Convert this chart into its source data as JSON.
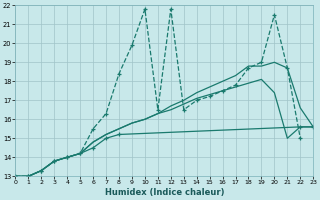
{
  "xlabel": "Humidex (Indice chaleur)",
  "bg_color": "#c8e8ea",
  "grid_color": "#a0c4c8",
  "line_color": "#1a7a6e",
  "xlim": [
    0,
    23
  ],
  "ylim": [
    13,
    22
  ],
  "figsize": [
    3.2,
    2.0
  ],
  "dpi": 100,
  "series": [
    {
      "x": [
        0,
        1,
        2,
        3,
        4,
        5,
        6,
        7,
        8,
        22,
        23
      ],
      "y": [
        13,
        13,
        13.3,
        13.8,
        14.0,
        14.2,
        14.5,
        15.0,
        15.2,
        15.6,
        15.6
      ],
      "ls": "-",
      "marker": true
    },
    {
      "x": [
        0,
        1,
        2,
        3,
        4,
        5,
        6,
        7,
        8,
        9,
        10,
        11,
        12,
        13,
        14,
        15,
        16,
        17,
        18,
        19,
        20,
        21,
        22,
        23
      ],
      "y": [
        13,
        13,
        13.3,
        13.8,
        14.0,
        14.2,
        14.8,
        15.2,
        15.5,
        15.8,
        16.0,
        16.3,
        16.5,
        16.8,
        17.1,
        17.3,
        17.5,
        17.7,
        17.9,
        18.1,
        17.4,
        15.0,
        15.6,
        15.6
      ],
      "ls": "-",
      "marker": false
    },
    {
      "x": [
        0,
        1,
        2,
        3,
        4,
        5,
        6,
        7,
        8,
        9,
        10,
        11,
        12,
        13,
        14,
        15,
        16,
        17,
        18,
        19,
        20,
        21,
        22,
        23
      ],
      "y": [
        13,
        13,
        13.3,
        13.8,
        14.0,
        14.2,
        14.8,
        15.2,
        15.5,
        15.8,
        16.0,
        16.3,
        16.7,
        17.0,
        17.4,
        17.7,
        18.0,
        18.3,
        18.8,
        18.8,
        19.0,
        18.7,
        16.6,
        15.6
      ],
      "ls": "-",
      "marker": false
    },
    {
      "x": [
        0,
        1,
        2,
        3,
        4,
        5,
        6,
        7,
        8,
        9,
        10,
        11,
        12,
        13,
        14,
        15,
        16,
        17,
        18,
        19,
        20,
        21,
        22
      ],
      "y": [
        13,
        13,
        13.3,
        13.8,
        14.0,
        14.2,
        15.5,
        16.3,
        18.4,
        19.9,
        21.8,
        16.5,
        21.8,
        16.5,
        17.0,
        17.2,
        17.5,
        17.8,
        18.7,
        19.0,
        21.5,
        18.7,
        15.0
      ],
      "ls": "--",
      "marker": true
    }
  ]
}
